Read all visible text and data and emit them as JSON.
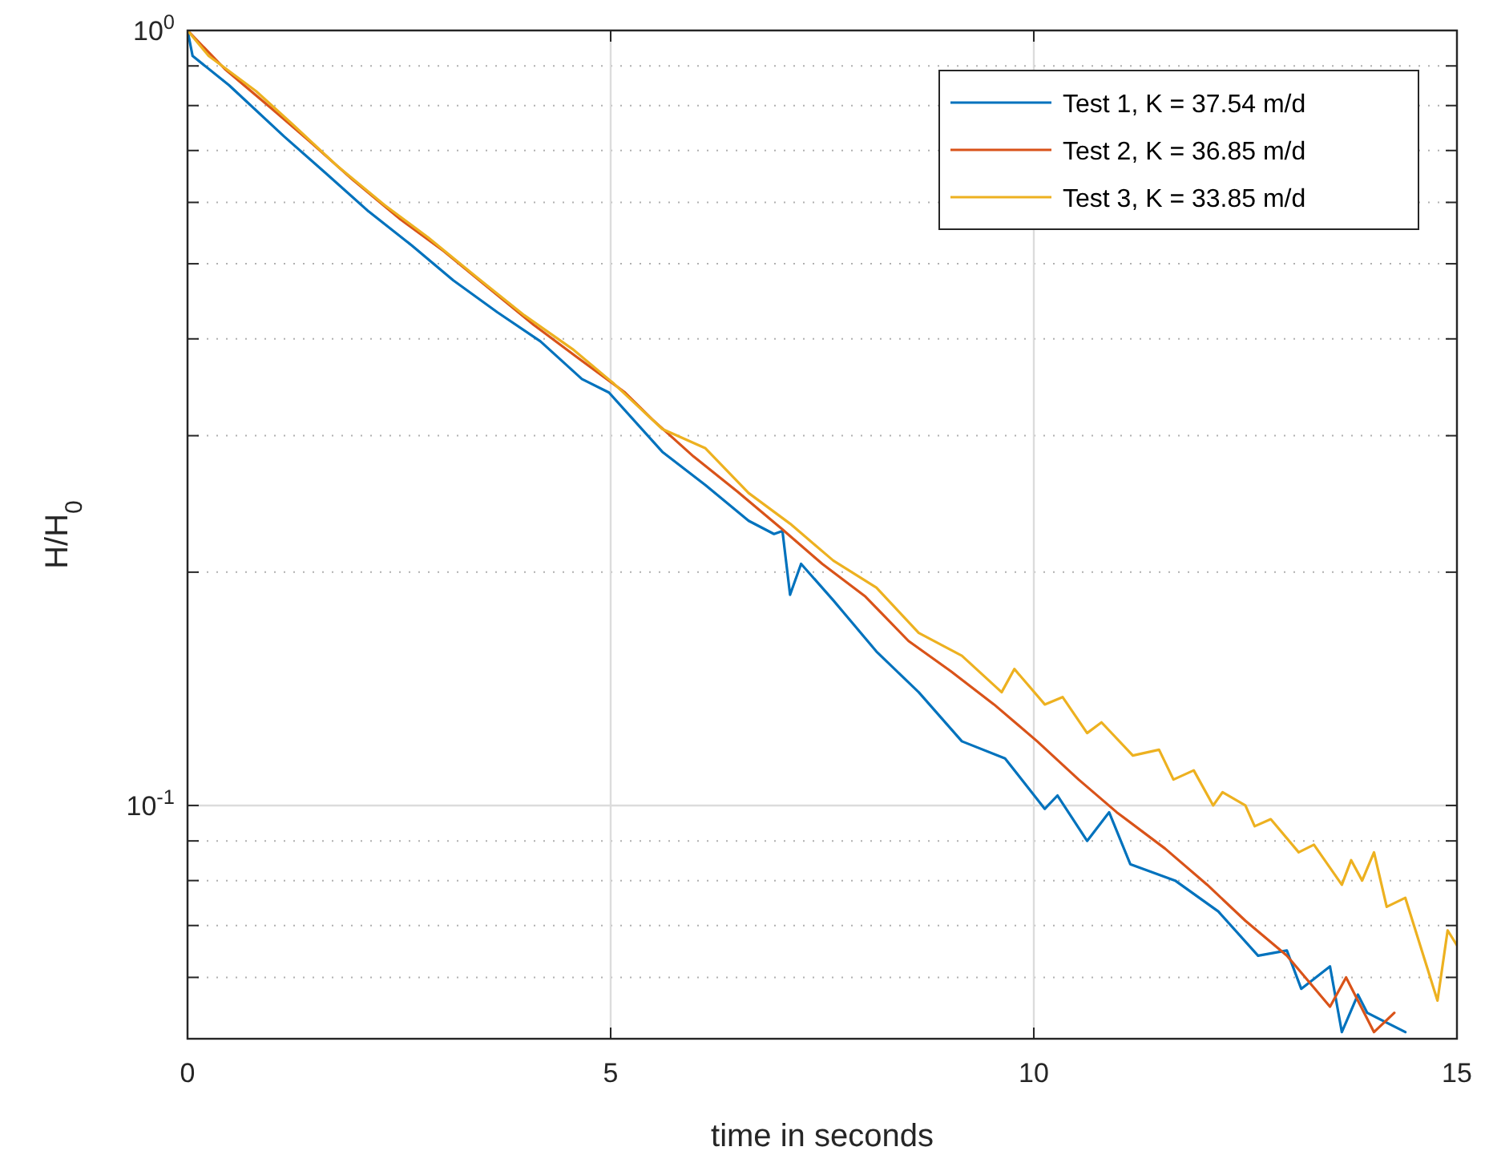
{
  "chart_data": {
    "type": "line",
    "xlabel": "time in seconds",
    "ylabel": "H/H$_{0}$",
    "log": "y",
    "grid": true,
    "legend": "top right",
    "line_style": "solid",
    "marker": "none",
    "xlim": [
      0,
      15
    ],
    "xticks": [
      0,
      5,
      10,
      15
    ],
    "ylim": [
      0.05,
      1
    ],
    "yticks": [
      {
        "value": 0.06,
        "label": null
      },
      {
        "value": 0.07,
        "label": null
      },
      {
        "value": 0.08,
        "label": null
      },
      {
        "value": 0.09,
        "label": null
      },
      {
        "value": 0.1,
        "label": "10$^{-1}$"
      },
      {
        "value": 0.2,
        "label": null
      },
      {
        "value": 0.3,
        "label": null
      },
      {
        "value": 0.4,
        "label": null
      },
      {
        "value": 0.5,
        "label": null
      },
      {
        "value": 0.6,
        "label": null
      },
      {
        "value": 0.7,
        "label": null
      },
      {
        "value": 0.8,
        "label": null
      },
      {
        "value": 0.9,
        "label": null
      },
      {
        "value": 1,
        "label": "10$^{0}$"
      }
    ],
    "series": [
      {
        "name": "Test 1, K = 37.54 m/d",
        "color": "#0072bd",
        "x": [
          0,
          0.06,
          0.49,
          1.14,
          1.63,
          2.14,
          2.65,
          3.14,
          3.66,
          4.17,
          4.66,
          4.98,
          5.61,
          6.12,
          6.63,
          6.93,
          7.03,
          7.12,
          7.25,
          7.63,
          8.14,
          8.64,
          9.15,
          9.66,
          10.13,
          10.28,
          10.63,
          10.89,
          11.14,
          11.67,
          12.18,
          12.65,
          12.99,
          13.16,
          13.5,
          13.64,
          13.83,
          13.94,
          14.39
        ],
        "values": [
          1,
          0.927,
          0.85,
          0.73,
          0.655,
          0.584,
          0.528,
          0.476,
          0.433,
          0.397,
          0.355,
          0.341,
          0.286,
          0.259,
          0.233,
          0.224,
          0.226,
          0.187,
          0.205,
          0.184,
          0.158,
          0.14,
          0.121,
          0.115,
          0.099,
          0.103,
          0.09,
          0.098,
          0.084,
          0.08,
          0.073,
          0.064,
          0.065,
          0.058,
          0.062,
          0.051,
          0.057,
          0.054,
          0.051
        ]
      },
      {
        "name": "Test 2, K = 36.85 m/d",
        "color": "#d95319",
        "x": [
          0,
          0.44,
          1,
          1.44,
          1.95,
          2.52,
          3.03,
          3.52,
          4.09,
          4.6,
          5.17,
          5.49,
          5.98,
          6.5,
          7.01,
          7.5,
          8.01,
          8.52,
          9.02,
          9.53,
          10.04,
          10.53,
          10.98,
          11.55,
          12.05,
          12.5,
          12.99,
          13.5,
          13.69,
          14.02,
          14.26
        ],
        "values": [
          1,
          0.892,
          0.792,
          0.72,
          0.642,
          0.57,
          0.519,
          0.469,
          0.417,
          0.379,
          0.341,
          0.315,
          0.282,
          0.254,
          0.228,
          0.205,
          0.186,
          0.163,
          0.149,
          0.135,
          0.121,
          0.108,
          0.098,
          0.088,
          0.079,
          0.071,
          0.064,
          0.055,
          0.06,
          0.051,
          0.054
        ]
      },
      {
        "name": "Test 3, K = 33.85 m/d",
        "color": "#edb120",
        "x": [
          0,
          0.25,
          0.81,
          1.25,
          1.76,
          2.33,
          2.84,
          3.41,
          3.98,
          4.55,
          5.04,
          5.61,
          6.12,
          6.63,
          7.12,
          7.63,
          8.14,
          8.64,
          9.15,
          9.62,
          9.77,
          10.13,
          10.34,
          10.63,
          10.8,
          11.17,
          11.48,
          11.65,
          11.89,
          12.12,
          12.23,
          12.5,
          12.61,
          12.8,
          13.13,
          13.31,
          13.64,
          13.75,
          13.88,
          14.02,
          14.17,
          14.39,
          14.77,
          14.89,
          15
        ],
        "values": [
          1,
          0.927,
          0.835,
          0.755,
          0.67,
          0.595,
          0.541,
          0.481,
          0.429,
          0.388,
          0.35,
          0.306,
          0.289,
          0.253,
          0.231,
          0.207,
          0.191,
          0.167,
          0.156,
          0.14,
          0.15,
          0.135,
          0.138,
          0.124,
          0.128,
          0.116,
          0.118,
          0.108,
          0.111,
          0.1,
          0.104,
          0.1,
          0.094,
          0.096,
          0.087,
          0.089,
          0.079,
          0.085,
          0.08,
          0.087,
          0.074,
          0.076,
          0.056,
          0.069,
          0.066
        ]
      }
    ]
  }
}
